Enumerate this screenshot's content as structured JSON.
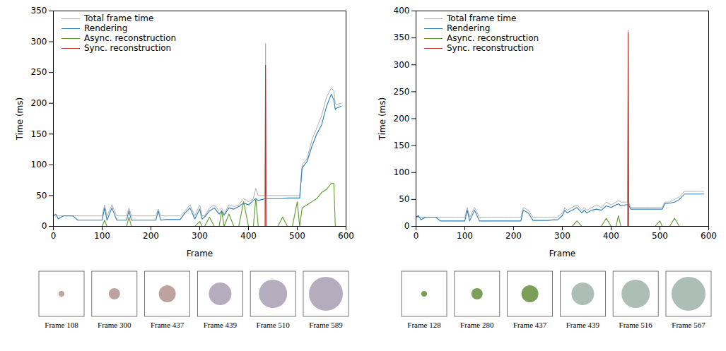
{
  "chart_data": [
    {
      "type": "line",
      "xlabel": "Frame",
      "ylabel": "Time (ms)",
      "xlim": [
        0,
        600
      ],
      "xticks": [
        0,
        100,
        200,
        300,
        400,
        500,
        600
      ],
      "ylim": [
        0,
        350
      ],
      "yticks": [
        0,
        50,
        100,
        150,
        200,
        250,
        300,
        350
      ],
      "legend": "upper left",
      "x": [
        0,
        5,
        10,
        20,
        30,
        40,
        50,
        60,
        70,
        80,
        90,
        100,
        105,
        110,
        120,
        130,
        140,
        150,
        155,
        160,
        170,
        180,
        190,
        200,
        210,
        215,
        220,
        230,
        240,
        250,
        260,
        270,
        280,
        290,
        300,
        305,
        310,
        320,
        330,
        340,
        345,
        350,
        360,
        370,
        380,
        390,
        400,
        410,
        415,
        420,
        430,
        434,
        435,
        436,
        440,
        450,
        460,
        470,
        480,
        490,
        500,
        505,
        510,
        520,
        530,
        540,
        550,
        560,
        570,
        575,
        578,
        580,
        590
      ],
      "series": [
        {
          "name": "Total frame time",
          "color": "#b0b0b0",
          "values": [
            17,
            17,
            17,
            17,
            17,
            17,
            17,
            17,
            17,
            17,
            17,
            17,
            35,
            17,
            35,
            17,
            17,
            17,
            30,
            17,
            17,
            17,
            17,
            17,
            17,
            28,
            17,
            17,
            17,
            17,
            17,
            25,
            35,
            17,
            35,
            17,
            17,
            30,
            35,
            25,
            30,
            20,
            35,
            32,
            35,
            45,
            40,
            45,
            62,
            50,
            50,
            50,
            297,
            50,
            50,
            50,
            50,
            50,
            50,
            50,
            50,
            50,
            100,
            110,
            140,
            160,
            180,
            210,
            225,
            220,
            200,
            198,
            200
          ]
        },
        {
          "name": "Rendering",
          "color": "#2b7bba",
          "values": [
            17,
            20,
            12,
            17,
            17,
            17,
            10,
            10,
            10,
            10,
            10,
            10,
            30,
            10,
            30,
            10,
            10,
            10,
            25,
            10,
            10,
            10,
            10,
            10,
            10,
            25,
            10,
            11,
            11,
            11,
            11,
            22,
            30,
            12,
            28,
            12,
            15,
            25,
            30,
            20,
            25,
            18,
            30,
            28,
            32,
            38,
            35,
            42,
            45,
            42,
            44,
            45,
            45,
            45,
            45,
            45,
            45,
            45,
            46,
            46,
            46,
            46,
            95,
            105,
            130,
            150,
            165,
            195,
            215,
            205,
            190,
            192,
            195
          ]
        },
        {
          "name": "Async. reconstruction",
          "color": "#5f9a2c",
          "values": [
            0,
            0,
            0,
            0,
            0,
            0,
            0,
            0,
            0,
            0,
            0,
            0,
            10,
            0,
            0,
            0,
            0,
            0,
            15,
            0,
            0,
            0,
            0,
            0,
            0,
            0,
            0,
            0,
            0,
            0,
            0,
            0,
            0,
            0,
            8,
            0,
            0,
            15,
            0,
            0,
            25,
            0,
            20,
            0,
            0,
            40,
            0,
            0,
            45,
            0,
            0,
            0,
            0,
            0,
            0,
            0,
            0,
            15,
            0,
            0,
            40,
            0,
            30,
            35,
            40,
            45,
            55,
            60,
            70,
            70,
            0,
            0,
            0
          ]
        },
        {
          "name": "Sync. reconstruction",
          "color": "#c0302b",
          "values": [
            null,
            null,
            null,
            null,
            null,
            null,
            null,
            null,
            null,
            null,
            null,
            null,
            null,
            null,
            null,
            null,
            null,
            null,
            null,
            null,
            null,
            null,
            null,
            null,
            null,
            null,
            null,
            null,
            null,
            null,
            null,
            null,
            null,
            null,
            null,
            null,
            null,
            null,
            null,
            null,
            null,
            null,
            null,
            null,
            null,
            null,
            null,
            null,
            null,
            null,
            null,
            0,
            262,
            0,
            null,
            null,
            null,
            null,
            null,
            null,
            null,
            null,
            null,
            null,
            null,
            null,
            null,
            null,
            null,
            null,
            null,
            null,
            null
          ]
        }
      ],
      "thumbnail_labels": [
        "Frame 108",
        "Frame 300",
        "Frame 437",
        "Frame 439",
        "Frame 510",
        "Frame 589"
      ]
    },
    {
      "type": "line",
      "xlabel": "Frame",
      "ylabel": "Time (ms)",
      "xlim": [
        0,
        600
      ],
      "xticks": [
        0,
        100,
        200,
        300,
        400,
        500,
        600
      ],
      "ylim": [
        0,
        400
      ],
      "yticks": [
        0,
        50,
        100,
        150,
        200,
        250,
        300,
        350,
        400
      ],
      "legend": "upper left",
      "x": [
        0,
        5,
        10,
        20,
        30,
        40,
        50,
        60,
        70,
        80,
        90,
        100,
        105,
        110,
        120,
        130,
        140,
        150,
        155,
        160,
        170,
        180,
        190,
        200,
        210,
        215,
        220,
        230,
        240,
        250,
        260,
        270,
        280,
        290,
        300,
        305,
        310,
        320,
        330,
        340,
        345,
        350,
        360,
        370,
        380,
        390,
        400,
        410,
        415,
        420,
        430,
        434,
        435,
        436,
        440,
        450,
        460,
        470,
        480,
        490,
        500,
        505,
        510,
        520,
        530,
        540,
        550,
        560,
        570,
        575,
        578,
        580,
        590
      ],
      "series": [
        {
          "name": "Total frame time",
          "color": "#b0b0b0",
          "values": [
            17,
            17,
            17,
            17,
            17,
            17,
            17,
            17,
            17,
            17,
            17,
            17,
            35,
            17,
            35,
            17,
            17,
            17,
            17,
            17,
            17,
            17,
            17,
            17,
            17,
            17,
            35,
            30,
            17,
            17,
            17,
            17,
            17,
            17,
            25,
            35,
            30,
            35,
            40,
            30,
            35,
            30,
            35,
            40,
            35,
            45,
            40,
            45,
            48,
            45,
            45,
            45,
            365,
            45,
            35,
            35,
            35,
            35,
            35,
            35,
            35,
            35,
            45,
            45,
            50,
            55,
            65,
            65,
            65,
            65,
            65,
            65,
            65
          ]
        },
        {
          "name": "Rendering",
          "color": "#2b7bba",
          "values": [
            17,
            20,
            12,
            17,
            17,
            17,
            10,
            10,
            10,
            10,
            10,
            10,
            30,
            10,
            30,
            10,
            10,
            10,
            10,
            10,
            10,
            10,
            10,
            10,
            10,
            10,
            30,
            25,
            11,
            11,
            11,
            11,
            12,
            12,
            20,
            30,
            25,
            30,
            35,
            25,
            30,
            25,
            30,
            32,
            30,
            38,
            35,
            40,
            42,
            38,
            40,
            40,
            40,
            40,
            32,
            32,
            32,
            32,
            32,
            32,
            32,
            32,
            42,
            43,
            45,
            50,
            60,
            60,
            60,
            60,
            60,
            60,
            60
          ]
        },
        {
          "name": "Async. reconstruction",
          "color": "#5f9a2c",
          "values": [
            0,
            0,
            0,
            0,
            0,
            0,
            0,
            0,
            0,
            0,
            0,
            0,
            0,
            0,
            0,
            0,
            0,
            0,
            0,
            0,
            0,
            0,
            0,
            0,
            0,
            0,
            0,
            0,
            0,
            0,
            0,
            0,
            0,
            0,
            0,
            0,
            0,
            0,
            10,
            0,
            0,
            0,
            0,
            0,
            0,
            15,
            0,
            0,
            20,
            0,
            0,
            0,
            0,
            0,
            0,
            0,
            0,
            0,
            0,
            0,
            10,
            0,
            0,
            0,
            15,
            0,
            0,
            0,
            0,
            0,
            0,
            0,
            0
          ]
        },
        {
          "name": "Sync. reconstruction",
          "color": "#c0302b",
          "values": [
            null,
            null,
            null,
            null,
            null,
            null,
            null,
            null,
            null,
            null,
            null,
            null,
            null,
            null,
            null,
            null,
            null,
            null,
            null,
            null,
            null,
            null,
            null,
            null,
            null,
            null,
            null,
            null,
            null,
            null,
            null,
            null,
            null,
            null,
            null,
            null,
            null,
            null,
            null,
            null,
            null,
            null,
            null,
            null,
            null,
            null,
            null,
            null,
            null,
            null,
            null,
            0,
            360,
            0,
            null,
            null,
            null,
            null,
            null,
            null,
            null,
            null,
            null,
            null,
            null,
            null,
            null,
            null,
            null,
            null,
            null,
            null,
            null
          ]
        }
      ],
      "thumbnail_labels": [
        "Frame 128",
        "Frame 280",
        "Frame 437",
        "Frame 439",
        "Frame 516",
        "Frame 567"
      ]
    }
  ]
}
